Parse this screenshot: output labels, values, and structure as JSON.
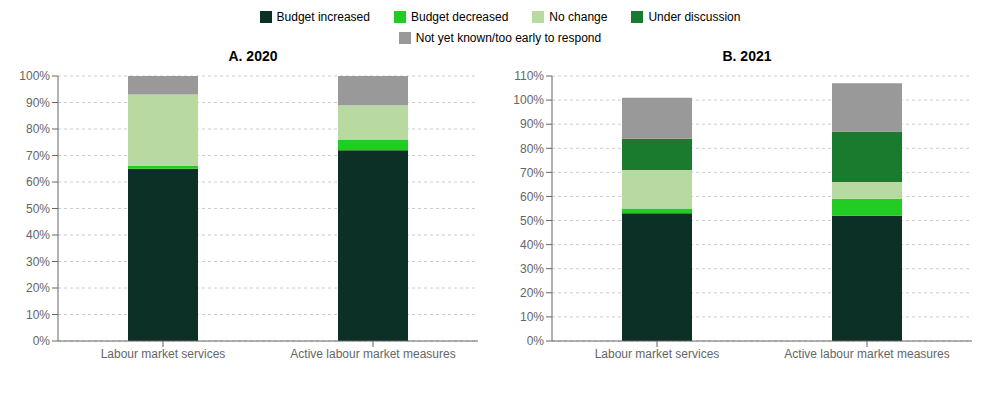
{
  "chart_data": [
    {
      "type": "bar",
      "title": "A. 2020",
      "stacked": true,
      "grid": true,
      "legend": "top",
      "categories": [
        "Labour market services",
        "Active labour market measures"
      ],
      "series": [
        {
          "name": "Budget increased",
          "color": "#0d3026",
          "values": [
            65,
            72
          ]
        },
        {
          "name": "Budget decreased",
          "color": "#22cc22",
          "values": [
            1,
            4
          ]
        },
        {
          "name": "No change",
          "color": "#b8d9a0",
          "values": [
            27,
            13
          ]
        },
        {
          "name": "Under discussion",
          "color": "#1a7a2e",
          "values": [
            0,
            0
          ]
        },
        {
          "name": "Not yet known/too early to respond",
          "color": "#999999",
          "values": [
            7,
            11
          ]
        }
      ],
      "ylim": [
        0,
        100
      ],
      "yticks": [
        {
          "value": 0,
          "label": "0%"
        },
        {
          "value": 10,
          "label": "10%"
        },
        {
          "value": 20,
          "label": "20%"
        },
        {
          "value": 30,
          "label": "30%"
        },
        {
          "value": 40,
          "label": "40%"
        },
        {
          "value": 50,
          "label": "50%"
        },
        {
          "value": 60,
          "label": "60%"
        },
        {
          "value": 70,
          "label": "70%"
        },
        {
          "value": 80,
          "label": "80%"
        },
        {
          "value": 90,
          "label": "90%"
        },
        {
          "value": 100,
          "label": "100%"
        }
      ]
    },
    {
      "type": "bar",
      "title": "B. 2021",
      "stacked": true,
      "grid": true,
      "categories": [
        "Labour market services",
        "Active labour market measures"
      ],
      "series": [
        {
          "name": "Budget increased",
          "color": "#0d3026",
          "values": [
            53,
            52
          ]
        },
        {
          "name": "Budget decreased",
          "color": "#22cc22",
          "values": [
            2,
            7
          ]
        },
        {
          "name": "No change",
          "color": "#b8d9a0",
          "values": [
            16,
            7
          ]
        },
        {
          "name": "Under discussion",
          "color": "#1a7a2e",
          "values": [
            13,
            21
          ]
        },
        {
          "name": "Not yet known/too early to respond",
          "color": "#999999",
          "values": [
            17,
            20
          ]
        }
      ],
      "ylim": [
        0,
        110
      ],
      "yticks": [
        {
          "value": 0,
          "label": "0%"
        },
        {
          "value": 10,
          "label": "10%"
        },
        {
          "value": 20,
          "label": "20%"
        },
        {
          "value": 30,
          "label": "30%"
        },
        {
          "value": 40,
          "label": "40%"
        },
        {
          "value": 50,
          "label": "50%"
        },
        {
          "value": 60,
          "label": "60%"
        },
        {
          "value": 70,
          "label": "70%"
        },
        {
          "value": 80,
          "label": "80%"
        },
        {
          "value": 90,
          "label": "90%"
        },
        {
          "value": 100,
          "label": "100%"
        },
        {
          "value": 110,
          "label": "110%"
        }
      ]
    }
  ]
}
